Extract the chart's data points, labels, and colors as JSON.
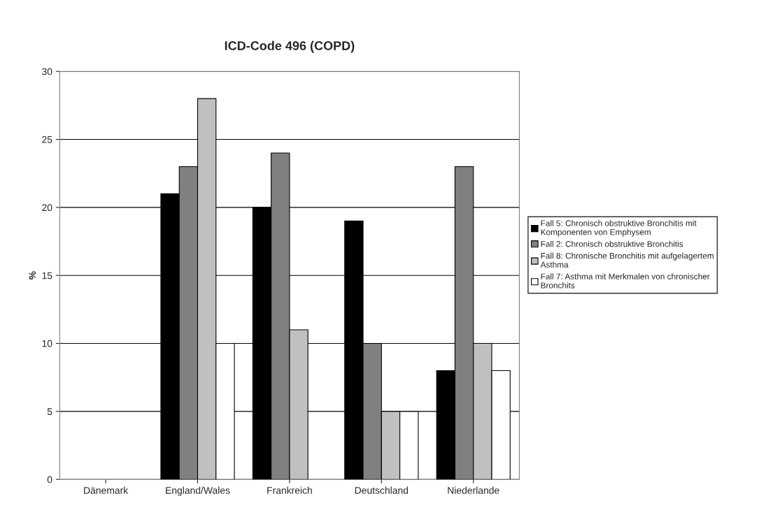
{
  "chart_data": {
    "type": "bar",
    "title": "ICD-Code 496 (COPD)",
    "ylabel": "%",
    "categories": [
      "Dänemark",
      "England/Wales",
      "Frankreich",
      "Deutschland",
      "Niederlande"
    ],
    "series": [
      {
        "name": "Fall 5: Chronisch obstruktive Bronchitis mit Komponenten von Emphysem",
        "color": "#000000",
        "values": [
          null,
          21,
          20,
          19,
          8
        ]
      },
      {
        "name": "Fall 2: Chronisch obstruktive Bronchitis",
        "color": "#808080",
        "values": [
          null,
          23,
          24,
          10,
          23
        ]
      },
      {
        "name": "Fall 8: Chronische Bronchitis mit aufgelagertem Asthma",
        "color": "#c0c0c0",
        "values": [
          null,
          28,
          11,
          5,
          10
        ]
      },
      {
        "name": "Fall 7: Asthma mit Merkmalen von chronischer Bronchits",
        "color": "#ffffff",
        "values": [
          null,
          10,
          null,
          5,
          8
        ]
      }
    ],
    "ylim": [
      0,
      30
    ],
    "yticks": [
      0,
      5,
      10,
      15,
      20,
      25,
      30
    ],
    "grid": "y",
    "legend": "right"
  }
}
